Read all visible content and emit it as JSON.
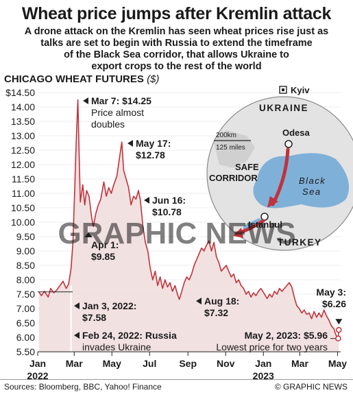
{
  "header": {
    "title": "Wheat price jumps after Kremlin attack",
    "subtitle_lines": [
      "A drone attack on the Kremlin has seen wheat prices rise just as",
      "talks are set to begin with Russia to extend the timeframe",
      "of the Black Sea corridor, that allows Ukraine to",
      "export crops to the rest of the world"
    ]
  },
  "chart_label": {
    "text": "CHICAGO WHEAT FUTURES",
    "unit": "($)"
  },
  "footer": {
    "sources": "Sources: Bloomberg, BBC, Yahoo! Finance",
    "credit": "© GRAPHIC NEWS"
  },
  "watermark": "GRAPHIC NEWS",
  "colors": {
    "line": "#c0323a",
    "fill": "#f0dcdc",
    "map_land": "#d6d6d6",
    "sea": "#7fb0d8",
    "corridor": "#c0323a",
    "grid": "#ffffff"
  },
  "map": {
    "cities": [
      "Kyiv",
      "Odesa",
      "Istanbul"
    ],
    "countries": [
      "UKRAINE",
      "TURKEY"
    ],
    "sea_lines": [
      "Black",
      "Sea"
    ],
    "corridor_lines": [
      "SAFE",
      "CORRIDOR"
    ],
    "scale_km": "200km",
    "scale_mi": "125 miles"
  },
  "chart_data": {
    "type": "line",
    "title": "CHICAGO WHEAT FUTURES",
    "ylabel": "($)",
    "ylim": [
      5.5,
      14.5
    ],
    "yticks": [
      "$14.50",
      "14.00",
      "13.50",
      "13.00",
      "12.50",
      "12.00",
      "11.50",
      "11.00",
      "10.50",
      "10.00",
      "9.50",
      "9.00",
      "8.50",
      "8.00",
      "7.50",
      "7.00",
      "6.50",
      "6.00",
      "5.50"
    ],
    "ytick_values": [
      14.5,
      14,
      13.5,
      13,
      12.5,
      12,
      11.5,
      11,
      10.5,
      10,
      9.5,
      9,
      8.5,
      8,
      7.5,
      7,
      6.5,
      6,
      5.5
    ],
    "xticks": [
      {
        "label": "Jan",
        "date": "2022-01-01",
        "year": "2022"
      },
      {
        "label": "Mar",
        "date": "2022-03-01"
      },
      {
        "label": "May",
        "date": "2022-05-01"
      },
      {
        "label": "Jul",
        "date": "2022-07-01"
      },
      {
        "label": "Sep",
        "date": "2022-09-01"
      },
      {
        "label": "Nov",
        "date": "2022-11-01"
      },
      {
        "label": "Jan",
        "date": "2023-01-01",
        "year": "2023"
      },
      {
        "label": "Mar",
        "date": "2023-03-01"
      },
      {
        "label": "May",
        "date": "2023-05-01"
      }
    ],
    "series": [
      {
        "points": [
          [
            "2022-01-03",
            7.58
          ],
          [
            "2022-01-07",
            7.45
          ],
          [
            "2022-01-12",
            7.6
          ],
          [
            "2022-01-18",
            7.4
          ],
          [
            "2022-01-22",
            7.7
          ],
          [
            "2022-01-27",
            7.55
          ],
          [
            "2022-02-01",
            7.65
          ],
          [
            "2022-02-06",
            7.8
          ],
          [
            "2022-02-11",
            7.95
          ],
          [
            "2022-02-16",
            7.7
          ],
          [
            "2022-02-20",
            7.85
          ],
          [
            "2022-02-24",
            8.4
          ],
          [
            "2022-02-27",
            9.3
          ],
          [
            "2022-03-02",
            11.2
          ],
          [
            "2022-03-04",
            12.6
          ],
          [
            "2022-03-07",
            14.25
          ],
          [
            "2022-03-09",
            12.4
          ],
          [
            "2022-03-11",
            10.7
          ],
          [
            "2022-03-15",
            11.3
          ],
          [
            "2022-03-18",
            10.6
          ],
          [
            "2022-03-21",
            11.1
          ],
          [
            "2022-03-25",
            10.9
          ],
          [
            "2022-03-29",
            10.2
          ],
          [
            "2022-04-01",
            9.85
          ],
          [
            "2022-04-05",
            10.3
          ],
          [
            "2022-04-09",
            10.6
          ],
          [
            "2022-04-13",
            10.8
          ],
          [
            "2022-04-18",
            11.4
          ],
          [
            "2022-04-22",
            10.9
          ],
          [
            "2022-04-26",
            11.2
          ],
          [
            "2022-04-30",
            11.0
          ],
          [
            "2022-05-04",
            11.3
          ],
          [
            "2022-05-09",
            11.6
          ],
          [
            "2022-05-13",
            12.2
          ],
          [
            "2022-05-17",
            12.78
          ],
          [
            "2022-05-20",
            11.8
          ],
          [
            "2022-05-24",
            11.5
          ],
          [
            "2022-05-28",
            11.2
          ],
          [
            "2022-06-01",
            10.6
          ],
          [
            "2022-06-05",
            10.9
          ],
          [
            "2022-06-09",
            10.8
          ],
          [
            "2022-06-13",
            11.1
          ],
          [
            "2022-06-16",
            10.78
          ],
          [
            "2022-06-20",
            9.9
          ],
          [
            "2022-06-24",
            9.3
          ],
          [
            "2022-06-28",
            9.0
          ],
          [
            "2022-07-02",
            8.4
          ],
          [
            "2022-07-06",
            8.0
          ],
          [
            "2022-07-10",
            8.3
          ],
          [
            "2022-07-14",
            7.8
          ],
          [
            "2022-07-18",
            8.1
          ],
          [
            "2022-07-22",
            7.7
          ],
          [
            "2022-07-26",
            8.0
          ],
          [
            "2022-07-30",
            7.75
          ],
          [
            "2022-08-03",
            7.9
          ],
          [
            "2022-08-07",
            7.6
          ],
          [
            "2022-08-11",
            7.8
          ],
          [
            "2022-08-15",
            7.5
          ],
          [
            "2022-08-18",
            7.32
          ],
          [
            "2022-08-22",
            7.6
          ],
          [
            "2022-08-26",
            7.9
          ],
          [
            "2022-08-30",
            8.1
          ],
          [
            "2022-09-03",
            8.0
          ],
          [
            "2022-09-07",
            8.2
          ],
          [
            "2022-09-11",
            8.5
          ],
          [
            "2022-09-15",
            8.7
          ],
          [
            "2022-09-19",
            8.9
          ],
          [
            "2022-09-23",
            9.1
          ],
          [
            "2022-09-27",
            9.0
          ],
          [
            "2022-10-01",
            9.2
          ],
          [
            "2022-10-05",
            9.35
          ],
          [
            "2022-10-09",
            9.0
          ],
          [
            "2022-10-13",
            9.3
          ],
          [
            "2022-10-17",
            8.8
          ],
          [
            "2022-10-21",
            8.6
          ],
          [
            "2022-10-25",
            8.3
          ],
          [
            "2022-10-29",
            8.4
          ],
          [
            "2022-11-02",
            8.5
          ],
          [
            "2022-11-06",
            8.3
          ],
          [
            "2022-11-10",
            8.1
          ],
          [
            "2022-11-14",
            8.2
          ],
          [
            "2022-11-18",
            7.9
          ],
          [
            "2022-11-22",
            8.0
          ],
          [
            "2022-11-26",
            7.8
          ],
          [
            "2022-11-30",
            7.7
          ],
          [
            "2022-12-04",
            7.5
          ],
          [
            "2022-12-08",
            7.6
          ],
          [
            "2022-12-12",
            7.4
          ],
          [
            "2022-12-16",
            7.55
          ],
          [
            "2022-12-20",
            7.45
          ],
          [
            "2022-12-24",
            7.6
          ],
          [
            "2022-12-28",
            7.7
          ],
          [
            "2023-01-03",
            7.5
          ],
          [
            "2023-01-07",
            7.35
          ],
          [
            "2023-01-11",
            7.5
          ],
          [
            "2023-01-15",
            7.4
          ],
          [
            "2023-01-19",
            7.6
          ],
          [
            "2023-01-23",
            7.5
          ],
          [
            "2023-01-27",
            7.7
          ],
          [
            "2023-01-31",
            7.6
          ],
          [
            "2023-02-04",
            7.7
          ],
          [
            "2023-02-08",
            7.8
          ],
          [
            "2023-02-12",
            7.9
          ],
          [
            "2023-02-16",
            7.75
          ],
          [
            "2023-02-20",
            7.4
          ],
          [
            "2023-02-24",
            7.1
          ],
          [
            "2023-02-28",
            7.0
          ],
          [
            "2023-03-04",
            6.85
          ],
          [
            "2023-03-08",
            6.95
          ],
          [
            "2023-03-12",
            6.8
          ],
          [
            "2023-03-16",
            6.85
          ],
          [
            "2023-03-20",
            6.65
          ],
          [
            "2023-03-24",
            6.9
          ],
          [
            "2023-03-28",
            6.7
          ],
          [
            "2023-04-01",
            6.85
          ],
          [
            "2023-04-05",
            6.7
          ],
          [
            "2023-04-09",
            6.95
          ],
          [
            "2023-04-13",
            6.75
          ],
          [
            "2023-04-17",
            6.6
          ],
          [
            "2023-04-21",
            6.4
          ],
          [
            "2023-04-25",
            6.3
          ],
          [
            "2023-04-28",
            6.1
          ],
          [
            "2023-05-02",
            5.96
          ],
          [
            "2023-05-03",
            6.26
          ]
        ]
      }
    ],
    "annotations": [
      {
        "date": "2022-03-07",
        "value": 14.25,
        "lines": [
          "Mar 7: $14.25",
          "Price almost",
          "doubles"
        ]
      },
      {
        "date": "2022-05-17",
        "value": 12.78,
        "lines": [
          "May 17:",
          "$12.78"
        ]
      },
      {
        "date": "2022-06-16",
        "value": 10.78,
        "lines": [
          "Jun 16:",
          "$10.78"
        ]
      },
      {
        "date": "2022-04-01",
        "value": 9.85,
        "lines": [
          "Apr 1:",
          "$9.85"
        ]
      },
      {
        "date": "2022-08-18",
        "value": 7.32,
        "lines": [
          "Aug 18:",
          "$7.32"
        ]
      },
      {
        "date": "2022-01-03",
        "value": 7.58,
        "lines": [
          "Jan 3, 2022:",
          "$7.58"
        ]
      },
      {
        "date": "2023-05-03",
        "value": 6.26,
        "lines": [
          "May 3:",
          "$6.26"
        ]
      },
      {
        "date": "2023-05-02",
        "value": 5.96,
        "lines": [
          "May 2, 2023: $5.96",
          "Lowest price for two years"
        ]
      },
      {
        "date": "2022-02-24",
        "lines": [
          "Feb 24, 2022: Russia",
          "invades Ukraine"
        ]
      }
    ]
  }
}
